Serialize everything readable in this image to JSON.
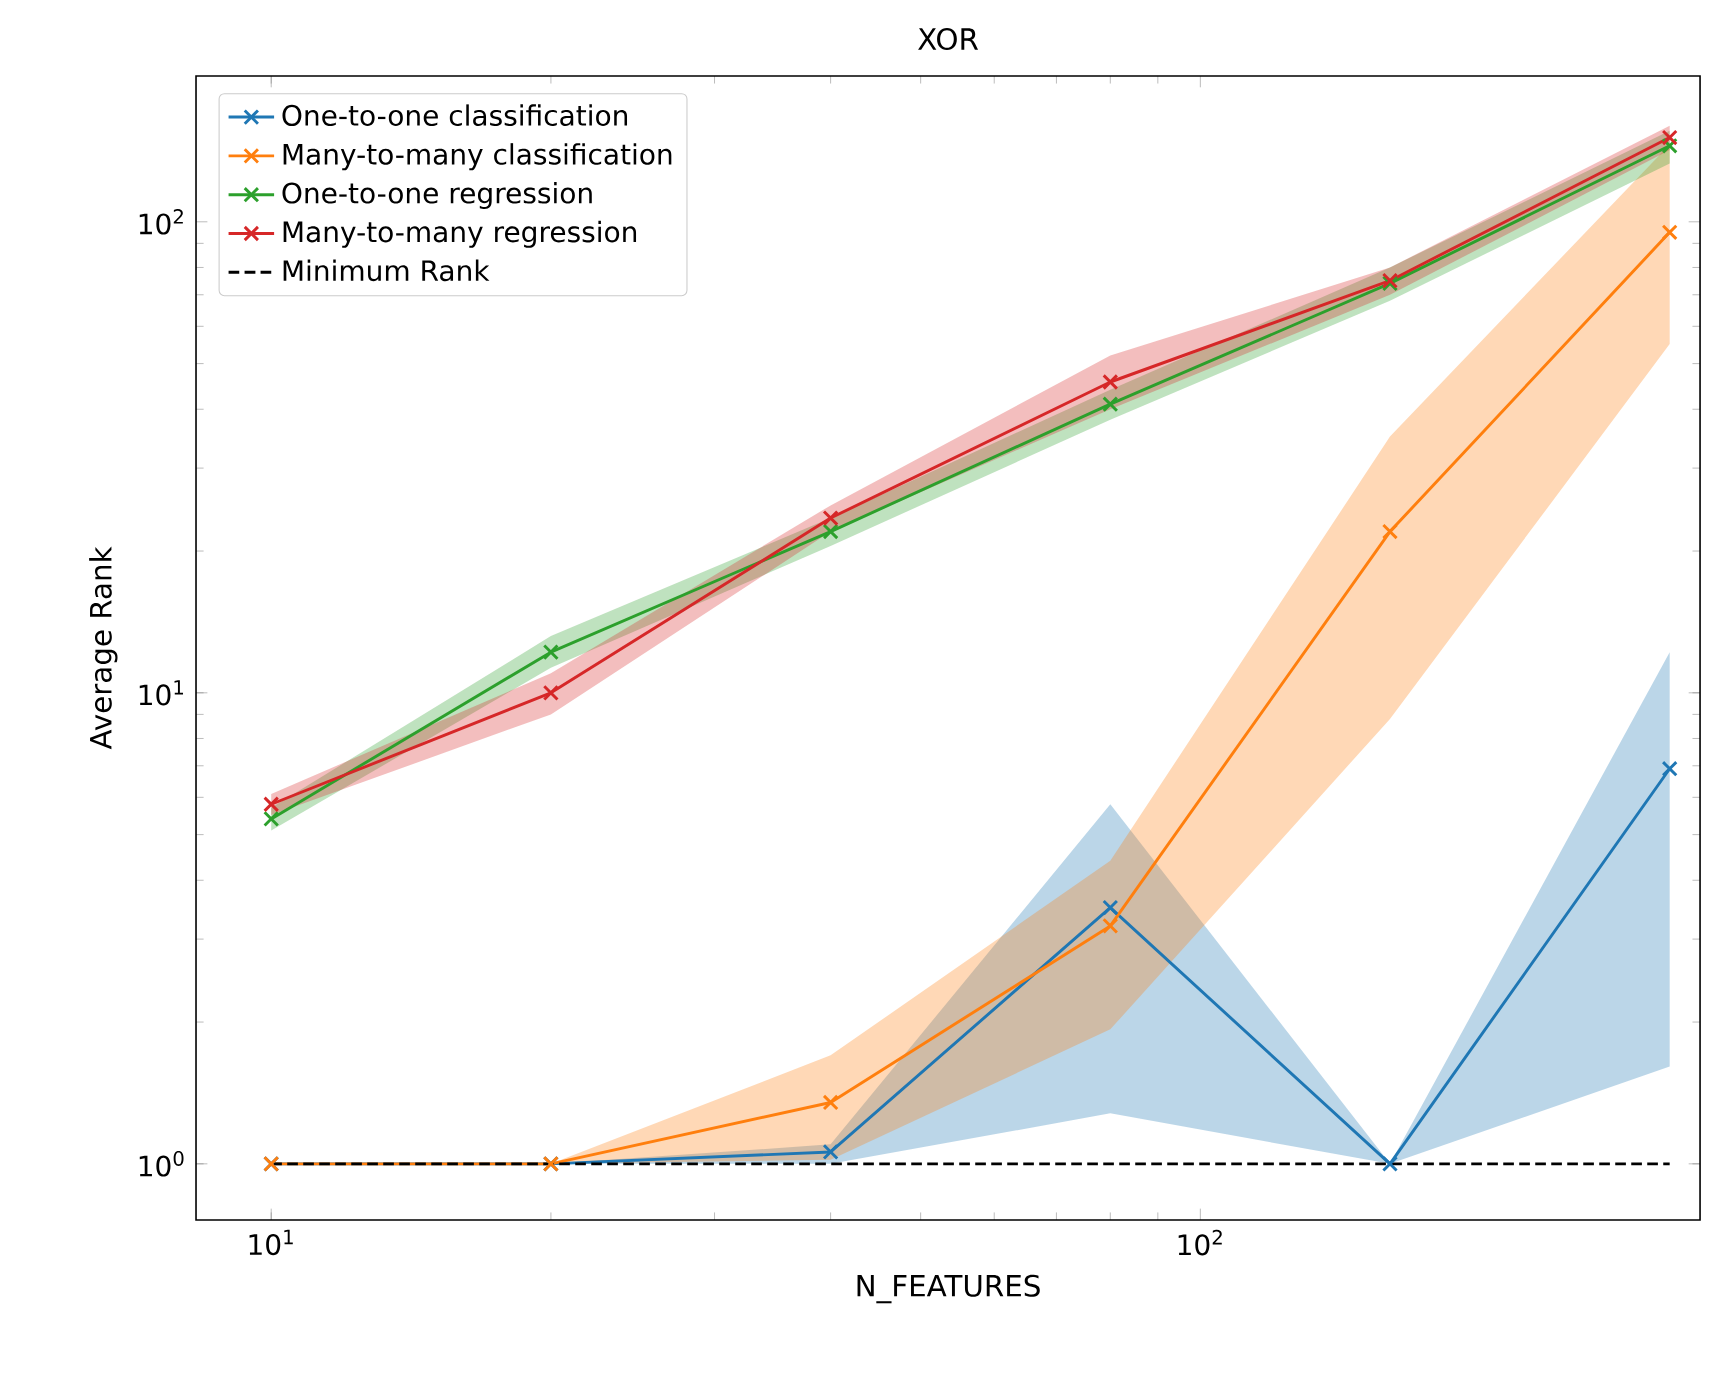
{
  "chart_data": {
    "type": "line",
    "title": "XOR",
    "xlabel": "N_FEATURES",
    "ylabel": "Average Rank",
    "x": [
      10,
      20,
      40,
      80,
      160,
      320
    ],
    "log": "xy",
    "xlim": [
      8.3,
      345
    ],
    "ylim": [
      0.76,
      204
    ],
    "xticks": [
      {
        "value": 10,
        "label": "10$^{1}$"
      },
      {
        "value": 100,
        "label": "10$^{2}$"
      }
    ],
    "yticks": [
      {
        "value": 1,
        "label": "10$^{0}$"
      },
      {
        "value": 10,
        "label": "10$^{1}$"
      },
      {
        "value": 100,
        "label": "10$^{2}$"
      }
    ],
    "legend": "top left",
    "marker": "cross",
    "line_style": "solid",
    "series": [
      {
        "name": "One-to-one classification",
        "color": "#1f77b4",
        "values": [
          1,
          1,
          1.06,
          3.5,
          1,
          6.9
        ],
        "lower": [
          1,
          1,
          1,
          1.28,
          1,
          1.61
        ],
        "upper": [
          1,
          1,
          1.1,
          5.8,
          1,
          12.2
        ]
      },
      {
        "name": "Many-to-many classification",
        "color": "#ff7f0e",
        "values": [
          1,
          1,
          1.35,
          3.2,
          22,
          95
        ],
        "lower": [
          1,
          1,
          1.02,
          1.93,
          8.8,
          55
        ],
        "upper": [
          1,
          1,
          1.7,
          4.4,
          35,
          146
        ]
      },
      {
        "name": "One-to-one regression",
        "color": "#2ca02c",
        "values": [
          5.4,
          12.2,
          22,
          41,
          74,
          145
        ],
        "lower": [
          5.1,
          11.3,
          20.5,
          38,
          68,
          133
        ],
        "upper": [
          5.7,
          13.2,
          23.5,
          44,
          80,
          156
        ]
      },
      {
        "name": "Many-to-many regression",
        "color": "#d62728",
        "values": [
          5.8,
          10,
          23.5,
          45.7,
          75,
          151
        ],
        "lower": [
          5.5,
          9.0,
          22,
          40,
          70,
          142
        ],
        "upper": [
          6.1,
          11,
          25,
          52,
          80,
          160
        ]
      },
      {
        "name": "Minimum Rank",
        "color": "#000000",
        "values": [
          1,
          1,
          1,
          1,
          1,
          1
        ],
        "marker": "none",
        "line_style": "dashed"
      }
    ]
  }
}
